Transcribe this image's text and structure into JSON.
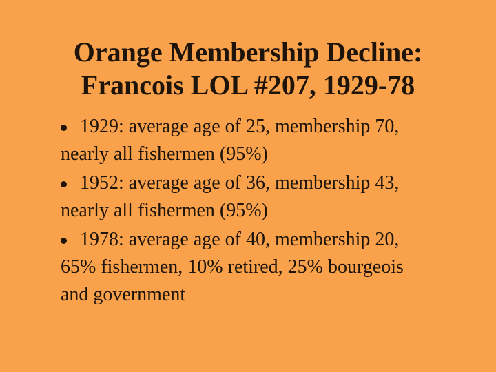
{
  "title": [
    "Orange Membership Decline:",
    "Francois LOL #207, 1929-78"
  ],
  "bullets": [
    [
      "1929: average age of 25, membership 70,",
      "nearly all fishermen (95%)"
    ],
    [
      "1952: average age of 36, membership 43,",
      "nearly all fishermen (95%)"
    ],
    [
      "1978: average age of 40, membership 20,",
      "65% fishermen, 10% retired, 25% bourgeois",
      "and government"
    ]
  ]
}
